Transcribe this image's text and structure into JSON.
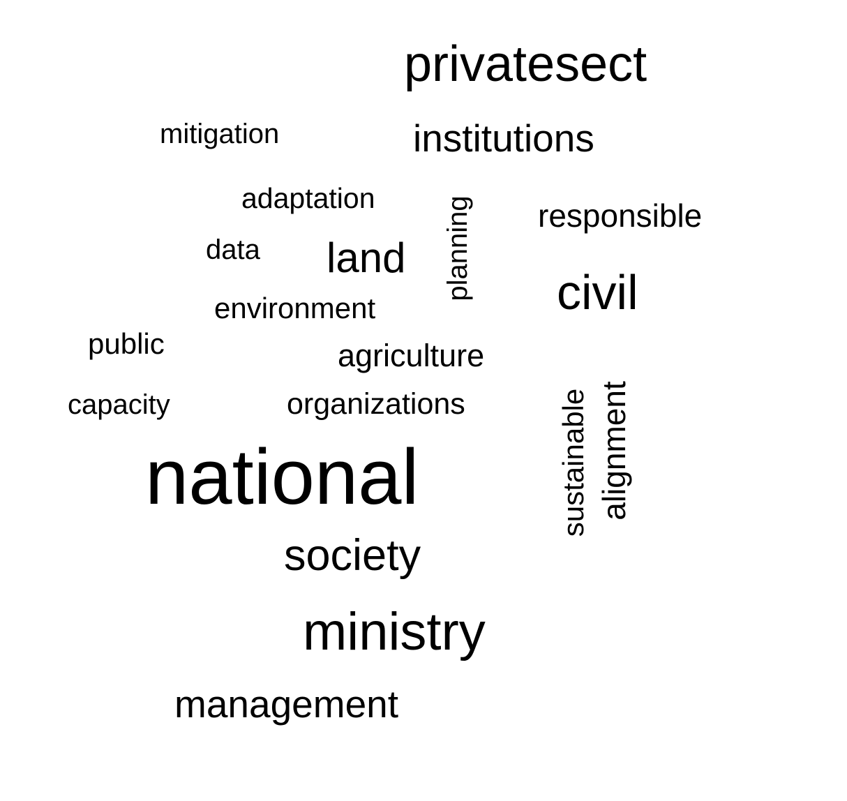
{
  "words": {
    "privatesect": "privatesect",
    "institutions": "institutions",
    "mitigation": "mitigation",
    "adaptation": "adaptation",
    "responsible": "responsible",
    "planning": "planning",
    "data": "data",
    "land": "land",
    "civil": "civil",
    "environment": "environment",
    "public": "public",
    "agriculture": "agriculture",
    "capacity": "capacity",
    "organizations": "organizations",
    "sustainable": "sustainable",
    "alignment": "alignment",
    "national": "national",
    "society": "society",
    "ministry": "ministry",
    "management": "management"
  },
  "colors": {
    "text": "#000000",
    "background": "#ffffff"
  }
}
